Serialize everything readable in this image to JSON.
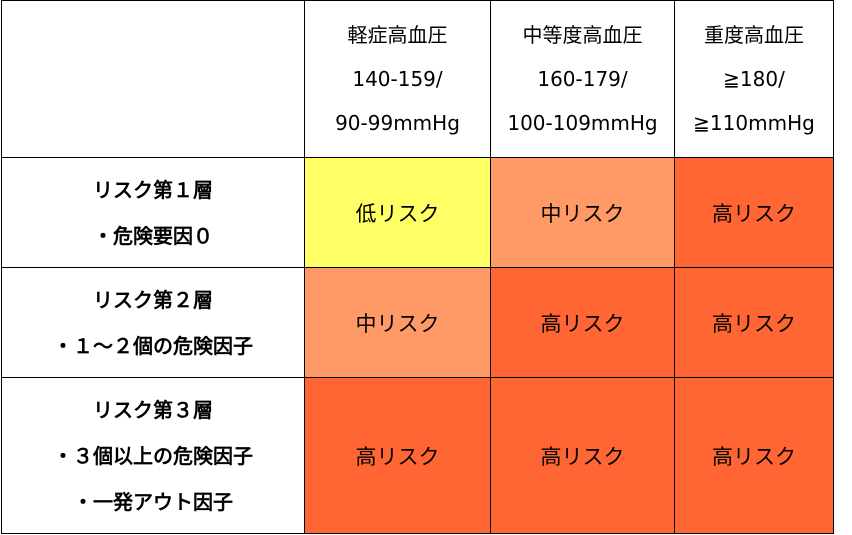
{
  "colors": {
    "low": "#ffff66",
    "medium": "#ff9966",
    "high": "#ff6633",
    "header": "#ffffff",
    "border": "#000000"
  },
  "columns": [
    {
      "lines": [
        "軽症高血圧",
        "140-159/",
        "90-99mmHg"
      ]
    },
    {
      "lines": [
        "中等度高血圧",
        "160-179/",
        "100-109mmHg"
      ]
    },
    {
      "lines": [
        "重度高血圧",
        "≧180/",
        "≧110mmHg"
      ]
    }
  ],
  "rows": [
    {
      "header": [
        "リスク第１層",
        "・危険要因０"
      ],
      "cells": [
        {
          "label": "低リスク",
          "level": "low"
        },
        {
          "label": "中リスク",
          "level": "medium"
        },
        {
          "label": "高リスク",
          "level": "high"
        }
      ]
    },
    {
      "header": [
        "リスク第２層",
        "・１～２個の危険因子"
      ],
      "cells": [
        {
          "label": "中リスク",
          "level": "medium"
        },
        {
          "label": "高リスク",
          "level": "high"
        },
        {
          "label": "高リスク",
          "level": "high"
        }
      ]
    },
    {
      "header": [
        "リスク第３層",
        "・３個以上の危険因子",
        "・一発アウト因子"
      ],
      "cells": [
        {
          "label": "高リスク",
          "level": "high"
        },
        {
          "label": "高リスク",
          "level": "high"
        },
        {
          "label": "高リスク",
          "level": "high"
        }
      ]
    }
  ]
}
